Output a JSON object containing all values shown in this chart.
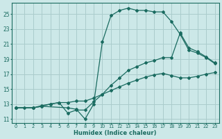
{
  "xlabel": "Humidex (Indice chaleur)",
  "ylabel": "",
  "bg_color": "#cce8e8",
  "grid_color": "#aacccc",
  "line_color": "#1a6b60",
  "xlim": [
    -0.5,
    23.5
  ],
  "ylim": [
    10.5,
    26.5
  ],
  "xticks": [
    0,
    1,
    2,
    3,
    4,
    5,
    6,
    7,
    8,
    9,
    10,
    11,
    12,
    13,
    14,
    15,
    16,
    17,
    18,
    19,
    20,
    21,
    22,
    23
  ],
  "yticks": [
    11,
    13,
    15,
    17,
    19,
    21,
    23,
    25
  ],
  "line1_x": [
    0,
    1,
    2,
    3,
    4,
    5,
    6,
    7,
    8,
    9,
    10,
    11,
    12,
    13,
    14,
    15,
    16,
    17,
    18,
    19,
    20,
    21,
    22,
    23
  ],
  "line1_y": [
    12.5,
    12.5,
    12.5,
    12.7,
    13.0,
    13.2,
    13.2,
    13.4,
    13.4,
    13.8,
    14.3,
    14.8,
    15.3,
    15.8,
    16.2,
    16.6,
    16.9,
    17.1,
    16.8,
    16.5,
    16.5,
    16.7,
    17.0,
    17.2
  ],
  "line2_x": [
    0,
    2,
    3,
    4,
    5,
    6,
    7,
    8,
    9,
    10,
    11,
    12,
    13,
    14,
    15,
    16,
    17,
    18,
    19,
    20,
    21,
    22,
    23
  ],
  "line2_y": [
    12.5,
    12.5,
    12.8,
    13.0,
    13.2,
    11.8,
    12.2,
    12.2,
    13.3,
    14.3,
    15.5,
    16.5,
    17.5,
    18.0,
    18.5,
    18.8,
    19.2,
    19.2,
    22.5,
    20.5,
    20.0,
    19.3,
    18.5
  ],
  "line3_x": [
    0,
    2,
    3,
    6,
    7,
    8,
    9,
    10,
    11,
    12,
    13,
    14,
    15,
    16,
    17,
    18,
    19,
    20,
    21,
    22,
    23
  ],
  "line3_y": [
    12.5,
    12.5,
    12.7,
    12.5,
    12.3,
    11.0,
    13.0,
    21.3,
    24.8,
    25.5,
    25.8,
    25.5,
    25.5,
    25.3,
    25.3,
    24.0,
    22.3,
    20.2,
    19.8,
    19.2,
    18.4
  ]
}
